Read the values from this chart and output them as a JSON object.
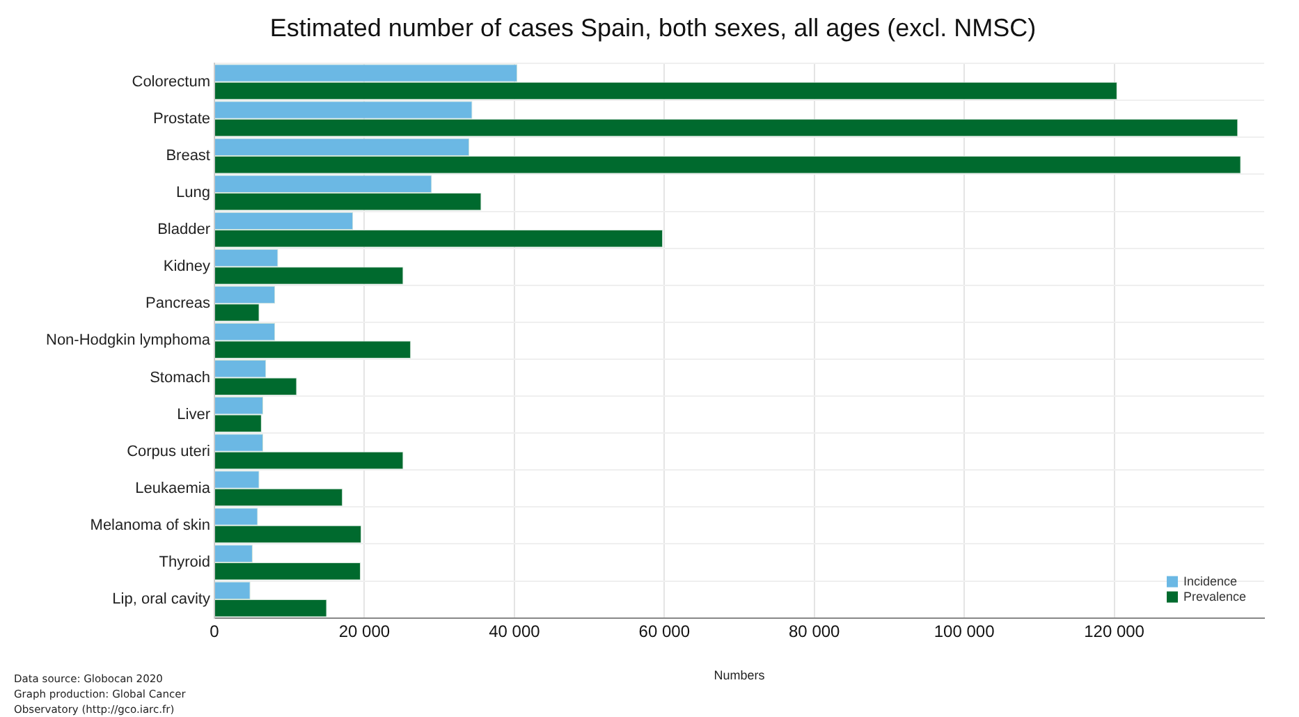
{
  "chart_data": {
    "type": "bar",
    "orientation": "horizontal",
    "title": "Estimated number of cases Spain, both sexes, all ages (excl. NMSC)",
    "xlabel": "Numbers",
    "categories": [
      "Colorectum",
      "Prostate",
      "Breast",
      "Lung",
      "Bladder",
      "Kidney",
      "Pancreas",
      "Non-Hodgkin lymphoma",
      "Stomach",
      "Liver",
      "Corpus uteri",
      "Leukaemia",
      "Melanoma of skin",
      "Thyroid",
      "Lip, oral cavity"
    ],
    "series": [
      {
        "name": "Incidence",
        "color": "#6bb8e4",
        "values": [
          40400,
          34400,
          34000,
          29000,
          18500,
          8500,
          8100,
          8100,
          6900,
          6500,
          6500,
          6000,
          5800,
          5100,
          4800
        ]
      },
      {
        "name": "Prevalence",
        "color": "#006a2e",
        "values": [
          120400,
          136500,
          136900,
          35600,
          59800,
          25200,
          6000,
          26200,
          11000,
          6300,
          25200,
          17100,
          19600,
          19500,
          15000
        ]
      }
    ],
    "xlim": [
      0,
      140000
    ],
    "xticks": [
      0,
      {
        "value": 20000,
        "label": "20 000"
      },
      {
        "value": 40000,
        "label": "40 000"
      },
      {
        "value": 60000,
        "label": "60 000"
      },
      {
        "value": 80000,
        "label": "80 000"
      },
      {
        "value": 100000,
        "label": "100 000"
      },
      {
        "value": 120000,
        "label": "120 000"
      }
    ],
    "grid": true,
    "legend": "bottom right",
    "annotations": [
      "Data source: Globocan 2020",
      "Graph production: Global Cancer",
      "Observatory (http://gco.iarc.fr)"
    ]
  }
}
